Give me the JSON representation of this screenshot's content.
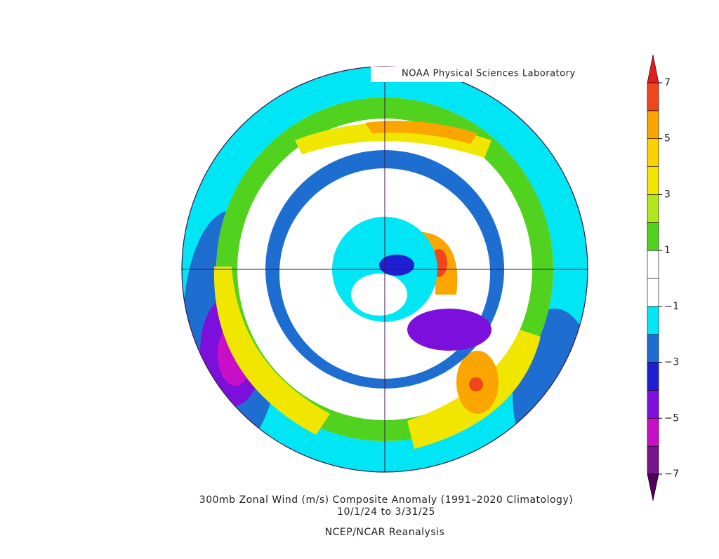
{
  "header": {
    "title": "NOAA Physical Sciences Laboratory"
  },
  "caption": {
    "line1": "300mb Zonal Wind (m/s) Composite Anomaly (1991–2020 Climatology)",
    "line2": "10/1/24  to 3/31/25",
    "line3": "NCEP/NCAR Reanalysis"
  },
  "colorbar": {
    "range": [
      -7,
      7
    ],
    "ticks": [
      7,
      5,
      3,
      1,
      {
        "value": -1,
        "label": "−1"
      },
      {
        "value": -3,
        "label": "−3"
      },
      {
        "value": -5,
        "label": "−5"
      },
      {
        "value": -7,
        "label": "−7"
      }
    ],
    "colors": [
      "#78148c",
      "#c80fc8",
      "#7d0fdc",
      "#1e1ed2",
      "#1e6ed2",
      "#00e6f5",
      "#ffffff",
      "#ffffff",
      "#50d21e",
      "#b4e61e",
      "#f0e600",
      "#fad200",
      "#faa500",
      "#f0461e"
    ],
    "under_color": "#50005a",
    "over_color": "#e11e1e"
  }
}
